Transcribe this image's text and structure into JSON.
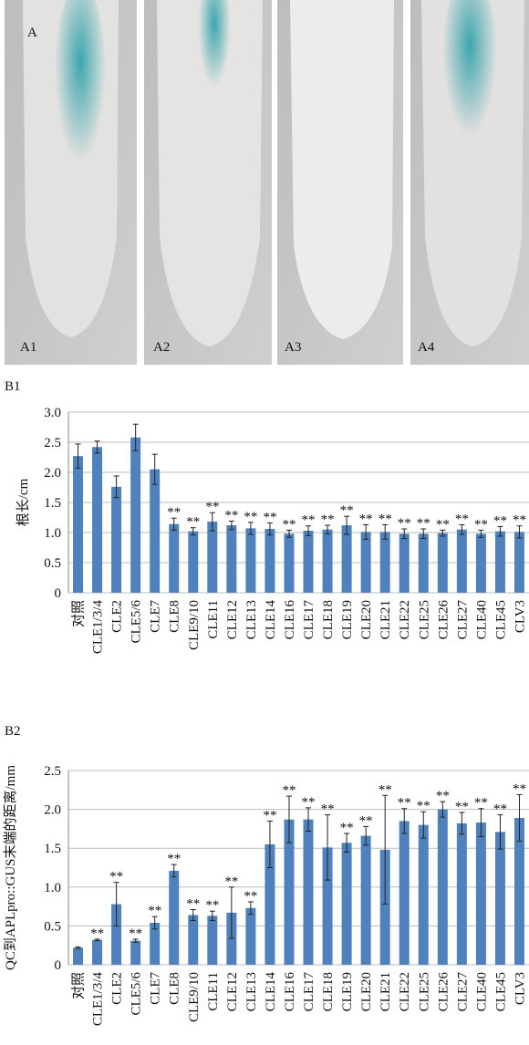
{
  "figure": {
    "panel_label": "A",
    "images": [
      "A1",
      "A2",
      "A3",
      "A4"
    ]
  },
  "chart_data": [
    {
      "type": "bar",
      "panel_label": "B1",
      "y_label": "根长/cm",
      "categories": [
        "对照",
        "CLE1/3/4",
        "CLE2",
        "CLE5/6",
        "CLE7",
        "CLE8",
        "CLE9/10",
        "CLE11",
        "CLE12",
        "CLE13",
        "CLE14",
        "CLE16",
        "CLE17",
        "CLE18",
        "CLE19",
        "CLE20",
        "CLE21",
        "CLE22",
        "CLE25",
        "CLE26",
        "CLE27",
        "CLE40",
        "CLE45",
        "CLV3"
      ],
      "values": [
        2.27,
        2.42,
        1.76,
        2.58,
        2.05,
        1.14,
        1.02,
        1.18,
        1.12,
        1.07,
        1.06,
        0.98,
        1.03,
        1.05,
        1.12,
        1.01,
        1.01,
        0.98,
        0.98,
        0.99,
        1.05,
        0.98,
        1.02,
        1.01
      ],
      "errors": [
        0.2,
        0.1,
        0.18,
        0.22,
        0.25,
        0.1,
        0.06,
        0.15,
        0.07,
        0.1,
        0.1,
        0.06,
        0.08,
        0.07,
        0.15,
        0.12,
        0.12,
        0.08,
        0.08,
        0.05,
        0.08,
        0.06,
        0.08,
        0.1
      ],
      "annotations": [
        null,
        null,
        null,
        null,
        null,
        "**",
        "**",
        "**",
        "**",
        "**",
        "**",
        "**",
        "**",
        "**",
        "**",
        "**",
        "**",
        "**",
        "**",
        "**",
        "**",
        "**",
        "**",
        "**"
      ],
      "color": "#4f81bd",
      "ylim": [
        0,
        3
      ],
      "grid": true,
      "yticks": [
        0,
        0.5,
        {
          "value": 1,
          "label": "1.0"
        },
        1.5,
        {
          "value": 2,
          "label": "2.0"
        },
        2.5,
        {
          "value": 3,
          "label": "3.0"
        }
      ]
    },
    {
      "type": "bar",
      "panel_label": "B2",
      "y_label": "QC到APLpro::GUS末端的距离/mm",
      "categories": [
        "对照",
        "CLE1/3/4",
        "CLE2",
        "CLE5/6",
        "CLE7",
        "CLE8",
        "CLE9/10",
        "CLE11",
        "CLE12",
        "CLE13",
        "CLE14",
        "CLE16",
        "CLE17",
        "CLE18",
        "CLE19",
        "CLE20",
        "CLE21",
        "CLE22",
        "CLE25",
        "CLE26",
        "CLE27",
        "CLE40",
        "CLE45",
        "CLV3"
      ],
      "values": [
        0.22,
        0.32,
        0.78,
        0.31,
        0.54,
        1.21,
        0.64,
        0.63,
        0.67,
        0.73,
        1.55,
        1.87,
        1.87,
        1.51,
        1.57,
        1.66,
        1.48,
        1.85,
        1.8,
        2.0,
        1.82,
        1.83,
        1.71,
        1.89
      ],
      "errors": [
        0.01,
        0.01,
        0.28,
        0.02,
        0.08,
        0.08,
        0.07,
        0.06,
        0.33,
        0.08,
        0.3,
        0.3,
        0.15,
        0.42,
        0.12,
        0.12,
        0.7,
        0.16,
        0.17,
        0.1,
        0.14,
        0.18,
        0.22,
        0.3
      ],
      "annotations": [
        null,
        "**",
        "**",
        "**",
        "**",
        "**",
        "**",
        "**",
        "**",
        "**",
        "**",
        "**",
        "**",
        "**",
        "**",
        "**",
        "**",
        "**",
        "**",
        "**",
        "**",
        "**",
        "**",
        "**"
      ],
      "color": "#4f81bd",
      "ylim": [
        0,
        2.5
      ],
      "grid": true,
      "yticks": [
        0,
        0.5,
        {
          "value": 1,
          "label": "1.0"
        },
        1.5,
        {
          "value": 2,
          "label": "2.0"
        },
        2.5
      ]
    }
  ]
}
